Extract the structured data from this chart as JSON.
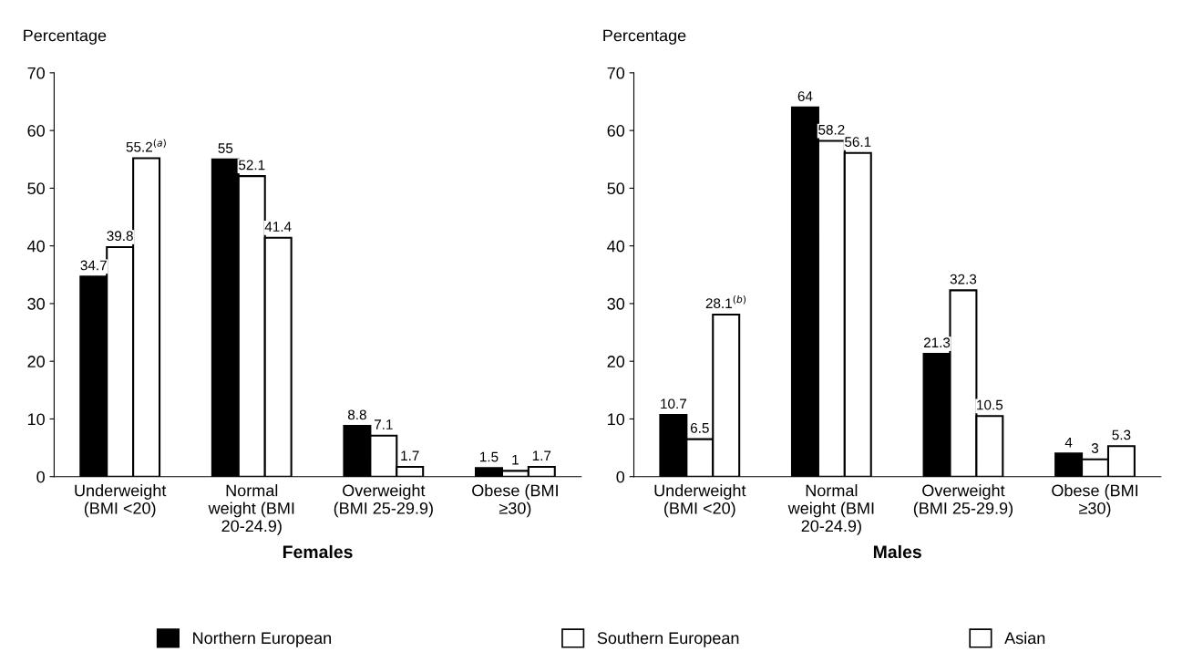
{
  "chart_data": [
    {
      "type": "bar",
      "xlabel": "Females",
      "ylabel": "Percentage",
      "categories": [
        "Underweight\n(BMI <20)",
        "Normal\nweight (BMI\n20-24.9)",
        "Overweight\n(BMI 25-29.9)",
        "Obese (BMI\n≥30)"
      ],
      "series": [
        {
          "name": "Northern European",
          "color": "#000000",
          "values": [
            34.7,
            55,
            8.8,
            1.5
          ],
          "value_labels": [
            "34.7",
            "55",
            "8.8",
            "1.5"
          ]
        },
        {
          "name": "Southern European",
          "color": "#ffffff",
          "values": [
            39.8,
            52.1,
            7.1,
            1
          ],
          "value_labels": [
            "39.8",
            "52.1",
            "7.1",
            "1"
          ]
        },
        {
          "name": "Asian",
          "color": "#ffffff",
          "values": [
            55.2,
            41.4,
            1.7,
            1.7
          ],
          "value_labels": [
            "55.2$^{(a)}$",
            "41.4",
            "1.7",
            "1.7"
          ]
        }
      ],
      "ylim": [
        0,
        70
      ],
      "yticks": [
        0,
        10,
        20,
        30,
        40,
        50,
        60,
        70
      ],
      "grid": false,
      "legend": "bottom"
    },
    {
      "type": "bar",
      "xlabel": "Males",
      "ylabel": "Percentage",
      "categories": [
        "Underweight\n(BMI <20)",
        "Normal\nweight (BMI\n20-24.9)",
        "Overweight\n(BMI 25-29.9)",
        "Obese (BMI\n≥30)"
      ],
      "series": [
        {
          "color": "#000000",
          "values": [
            10.7,
            64,
            21.3,
            4
          ],
          "value_labels": [
            "10.7",
            "64",
            "21.3",
            "4"
          ]
        },
        {
          "color": "#ffffff",
          "values": [
            6.5,
            58.2,
            32.3,
            3
          ],
          "value_labels": [
            "6.5",
            "58.2",
            "32.3",
            "3"
          ]
        },
        {
          "color": "#ffffff",
          "values": [
            28.1,
            56.1,
            10.5,
            5.3
          ],
          "value_labels": [
            "28.1$^{(b)}$",
            "56.1",
            "10.5",
            "5.3"
          ]
        }
      ],
      "ylim": [
        0,
        70
      ],
      "yticks": [
        0,
        10,
        20,
        30,
        40,
        50,
        60,
        70
      ],
      "grid": false
    }
  ]
}
